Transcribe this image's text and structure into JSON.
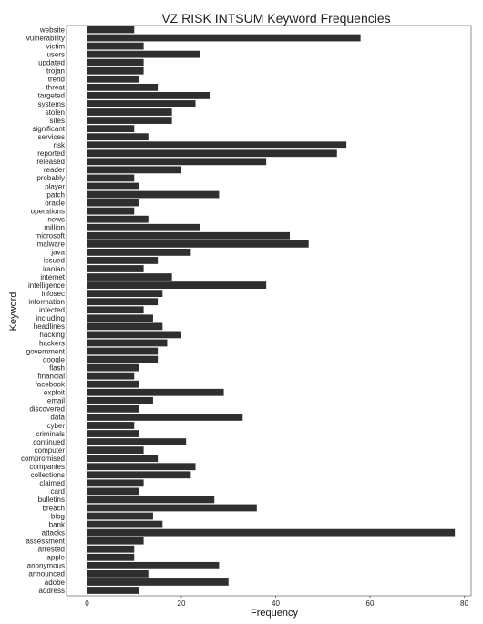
{
  "chart_data": {
    "type": "bar",
    "orientation": "horizontal",
    "title": "VZ RISK INTSUM Keyword Frequencies",
    "xlabel": "Frequency",
    "ylabel": "Keyword",
    "xlim": [
      0,
      80
    ],
    "xticks": [
      0,
      20,
      40,
      60,
      80
    ],
    "grid": false,
    "bar_color": "#2f2f2f",
    "categories": [
      "website",
      "vulnerability",
      "victim",
      "users",
      "updated",
      "trojan",
      "trend",
      "threat",
      "targeted",
      "systems",
      "stolen",
      "sites",
      "significant",
      "services",
      "risk",
      "reported",
      "released",
      "reader",
      "probably",
      "player",
      "patch",
      "oracle",
      "operations",
      "news",
      "million",
      "microsoft",
      "malware",
      "java",
      "issued",
      "iranian",
      "internet",
      "intelligence",
      "infosec",
      "information",
      "infected",
      "including",
      "headlines",
      "hacking",
      "hackers",
      "government",
      "google",
      "flash",
      "financial",
      "facebook",
      "exploit",
      "email",
      "discovered",
      "data",
      "cyber",
      "criminals",
      "continued",
      "computer",
      "compromised",
      "companies",
      "collections",
      "claimed",
      "card",
      "bulletins",
      "breach",
      "blog",
      "bank",
      "attacks",
      "assessment",
      "arrested",
      "apple",
      "anonymous",
      "announced",
      "adobe",
      "address"
    ],
    "values": [
      10,
      58,
      12,
      24,
      12,
      12,
      11,
      15,
      26,
      23,
      18,
      18,
      10,
      13,
      55,
      53,
      38,
      20,
      10,
      11,
      28,
      11,
      10,
      13,
      24,
      43,
      47,
      22,
      15,
      12,
      18,
      38,
      16,
      15,
      12,
      14,
      16,
      20,
      17,
      15,
      15,
      11,
      10,
      11,
      29,
      14,
      11,
      33,
      10,
      11,
      21,
      12,
      15,
      23,
      22,
      12,
      11,
      27,
      36,
      14,
      16,
      78,
      12,
      10,
      10,
      28,
      13,
      30,
      11
    ]
  }
}
